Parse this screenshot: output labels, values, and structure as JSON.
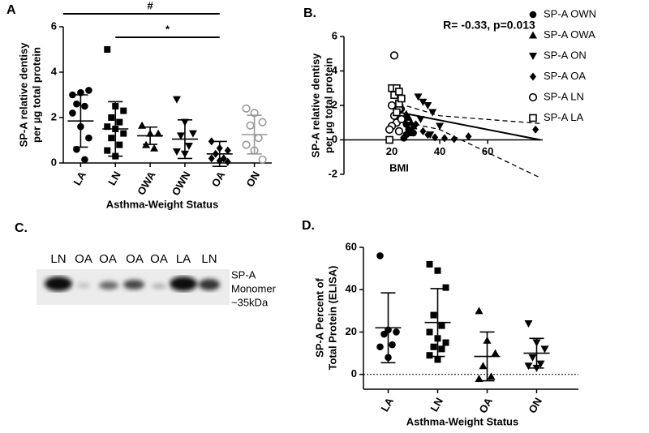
{
  "chart_data": [
    {
      "type": "dotplot",
      "panel": "A",
      "categories": [
        "LA",
        "LN",
        "OWA",
        "OWN",
        "OA",
        "ON"
      ],
      "markers": [
        "circle",
        "square",
        "triangle-up",
        "triangle-down",
        "diamond",
        "circle-open"
      ],
      "colors": [
        "#000000",
        "#000000",
        "#000000",
        "#000000",
        "#000000",
        "#999999"
      ],
      "points": [
        [
          3.0,
          3.1,
          3.2,
          2.6,
          2.5,
          2.2,
          1.6,
          1.1,
          0.6,
          0.15
        ],
        [
          5.0,
          2.5,
          2.3,
          2.0,
          1.8,
          1.6,
          1.5,
          1.3,
          1.1,
          0.8,
          0.55,
          0.3
        ],
        [
          1.65,
          1.3,
          1.3,
          0.8,
          0.65
        ],
        [
          2.8,
          1.8,
          1.3,
          1.2,
          0.75,
          0.5,
          0.4
        ],
        [
          0.95,
          0.65,
          0.55,
          0.4,
          0.2,
          0.2,
          0.1,
          0.05
        ],
        [
          2.4,
          2.2,
          1.8,
          1.65,
          1.1,
          0.8,
          0.55,
          0.15
        ]
      ],
      "means": [
        1.85,
        1.5,
        1.2,
        1.05,
        0.4,
        1.25
      ],
      "sd": [
        1.15,
        1.2,
        0.38,
        0.85,
        0.55,
        0.85
      ],
      "ylim": [
        0,
        6
      ],
      "yticks": [
        0,
        2,
        4,
        6
      ],
      "ylabel": [
        "SP-A relative dentisy",
        "per µg total protein"
      ],
      "xlabel": "Asthma-Weight Status",
      "brackets": [
        {
          "label": "#",
          "from": 0,
          "to": 4
        },
        {
          "label": "*",
          "from": 1,
          "to": 4
        }
      ]
    },
    {
      "type": "scatter",
      "panel": "B.",
      "annotation": "R= -0.33, p=0.013",
      "series": [
        {
          "name": "SP-A OWN",
          "marker": "circle",
          "color": "#000000",
          "x": [
            24,
            25,
            26,
            27,
            28,
            26,
            29,
            25
          ],
          "y": [
            1.8,
            1.2,
            0.9,
            0.6,
            0.5,
            0.3,
            0.4,
            0.1
          ]
        },
        {
          "name": "SP-A OWA",
          "marker": "triangle-up",
          "color": "#000000",
          "x": [
            26,
            27,
            28,
            29,
            28
          ],
          "y": [
            1.5,
            1.3,
            1.0,
            0.8,
            0.4
          ]
        },
        {
          "name": "SP-A ON",
          "marker": "triangle-down",
          "color": "#000000",
          "x": [
            31,
            33,
            35,
            37,
            32,
            40,
            36
          ],
          "y": [
            2.5,
            2.2,
            2.0,
            1.6,
            1.2,
            0.8,
            0.3
          ]
        },
        {
          "name": "SP-A OA",
          "marker": "diamond",
          "color": "#000000",
          "x": [
            30,
            33,
            35,
            38,
            42,
            46,
            52,
            80
          ],
          "y": [
            0.9,
            0.5,
            0.3,
            0.15,
            0.1,
            0.05,
            0.2,
            0.6
          ]
        },
        {
          "name": "SP-A LN",
          "marker": "circle-open",
          "color": "#000000",
          "x": [
            21,
            22,
            20,
            23,
            21,
            22,
            20,
            23,
            19,
            24
          ],
          "y": [
            4.9,
            2.6,
            2.0,
            1.8,
            1.4,
            1.0,
            0.8,
            0.5,
            0.6,
            1.2
          ]
        },
        {
          "name": "SP-A LA",
          "marker": "square-open",
          "color": "#000000",
          "x": [
            20,
            22,
            21,
            23,
            22,
            24,
            19,
            23
          ],
          "y": [
            3.0,
            3.0,
            2.6,
            2.1,
            1.6,
            2.4,
            0.0,
            2.8
          ]
        }
      ],
      "fit_lines": [
        {
          "x": [
            23,
            82
          ],
          "y": [
            1.6,
            0.0
          ],
          "dashed": false
        },
        {
          "x": [
            23,
            40,
            82
          ],
          "y": [
            2.1,
            1.4,
            0.95
          ],
          "dashed": true
        },
        {
          "x": [
            23,
            40,
            82
          ],
          "y": [
            1.1,
            0.6,
            -2.2
          ],
          "dashed": true
        }
      ],
      "xlim": [
        0,
        83
      ],
      "xticks": [
        20,
        40,
        60
      ],
      "ylim": [
        -2,
        6
      ],
      "yticks": [
        -2,
        0,
        2,
        4,
        6
      ],
      "xlabel": "BMI",
      "ylabel": [
        "SP-A relative dentisy",
        "per µg total protein"
      ]
    },
    {
      "type": "dotplot",
      "panel": "D.",
      "categories": [
        "LA",
        "LN",
        "OA",
        "ON"
      ],
      "markers": [
        "circle",
        "square",
        "triangle-up",
        "triangle-down"
      ],
      "colors": [
        "#000000",
        "#000000",
        "#000000",
        "#000000"
      ],
      "points": [
        [
          56,
          21,
          20,
          19,
          14,
          13,
          8
        ],
        [
          52,
          49,
          41,
          28,
          23,
          20,
          17,
          15,
          13,
          12,
          9,
          7
        ],
        [
          30,
          16,
          10,
          4,
          -1,
          -2
        ],
        [
          24,
          15,
          12,
          8,
          5,
          4,
          3
        ]
      ],
      "means": [
        22,
        24.5,
        8.5,
        10
      ],
      "sd": [
        16.5,
        16,
        11.5,
        7
      ],
      "ylim": [
        -7,
        60
      ],
      "yticks": [
        0,
        20,
        40,
        60
      ],
      "refline": 0,
      "ylabel": [
        "SP-A Percent of",
        "Total Protein (ELISA)"
      ],
      "xlabel": "Asthma-Weight Status"
    }
  ],
  "blot": {
    "panel": "C.",
    "lanes": [
      "LN",
      "OA",
      "OA",
      "OA",
      "OA",
      "LA",
      "LN"
    ],
    "label": [
      "SP-A",
      "Monomer",
      "~35kDa"
    ]
  }
}
